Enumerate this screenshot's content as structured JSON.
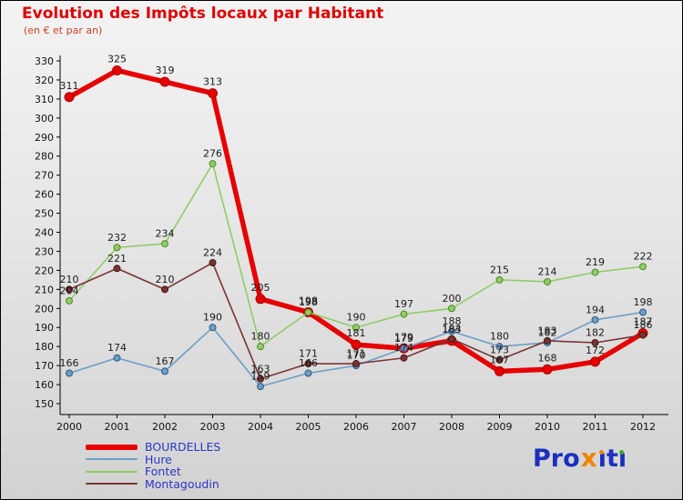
{
  "title": "Evolution des Impôts locaux par Habitant",
  "subtitle": "(en € et par an)",
  "colors": {
    "title": "#e00000",
    "subtitle": "#cc4125",
    "legend_text": "#2a35c8",
    "axis": "#000000",
    "logo_blue": "#1c2fbe",
    "logo_x": "#f08300",
    "logo_dot1": "#f08300",
    "logo_dot2": "#3fa32a"
  },
  "logo": {
    "pro": "Pro",
    "x": "x",
    "t": "t",
    "i": "ı",
    "text": "Proxiti"
  },
  "chart_data": {
    "type": "line",
    "title": "Evolution des Impôts locaux par Habitant",
    "subtitle": "(en € et par an)",
    "x": [
      2000,
      2001,
      2002,
      2003,
      2004,
      2005,
      2006,
      2007,
      2008,
      2009,
      2010,
      2011,
      2012
    ],
    "ylim": [
      150,
      330
    ],
    "ytick_step": 10,
    "grid": false,
    "legend_position": "bottom-left",
    "series": [
      {
        "name": "BOURDELLES",
        "color": "#e60000",
        "width": 5.5,
        "point_radius": 5,
        "point_stroke": "#a80000",
        "values": [
          311,
          325,
          319,
          313,
          205,
          198,
          181,
          179,
          183,
          167,
          168,
          172,
          187
        ]
      },
      {
        "name": "Hure",
        "color": "#6d9ec7",
        "width": 1.6,
        "point_radius": 3.5,
        "point_stroke": "#2f567c",
        "values": [
          166,
          174,
          167,
          190,
          159,
          166,
          170,
          179,
          188,
          180,
          182,
          194,
          198
        ]
      },
      {
        "name": "Fontet",
        "color": "#90cc66",
        "width": 1.6,
        "point_radius": 3.5,
        "point_stroke": "#4c8a22",
        "values": [
          204,
          232,
          234,
          276,
          180,
          198,
          190,
          197,
          200,
          215,
          214,
          219,
          222
        ]
      },
      {
        "name": "Montagoudin",
        "color": "#7a3333",
        "width": 1.6,
        "point_radius": 3.5,
        "point_stroke": "#401717",
        "values": [
          210,
          221,
          210,
          224,
          163,
          171,
          171,
          174,
          184,
          173,
          183,
          182,
          186
        ]
      }
    ]
  }
}
